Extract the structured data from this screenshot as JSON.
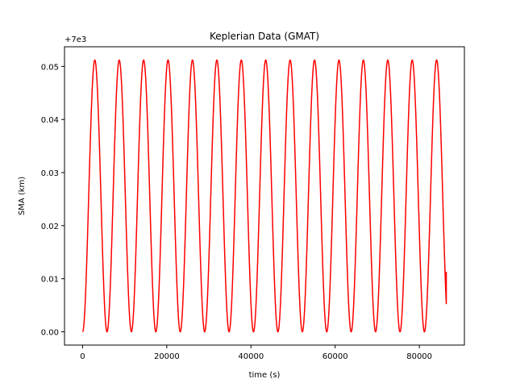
{
  "chart_data": {
    "type": "line",
    "title": "Keplerian Data (GMAT)",
    "xlabel": "time (s)",
    "ylabel": "SMA (km)",
    "y_offset_label": "+7e3",
    "xlim": [
      -4300,
      90700
    ],
    "ylim": [
      -0.0025,
      0.0537
    ],
    "x_ticks": [
      0,
      20000,
      40000,
      60000,
      80000
    ],
    "x_tick_labels": [
      "0",
      "20000",
      "40000",
      "60000",
      "80000"
    ],
    "y_ticks": [
      0.0,
      0.01,
      0.02,
      0.03,
      0.04,
      0.05
    ],
    "y_tick_labels": [
      "0.00",
      "0.01",
      "0.02",
      "0.03",
      "0.04",
      "0.05"
    ],
    "grid": false,
    "series": [
      {
        "color": "#ff0000",
        "x_start": 0,
        "x_end": 86400,
        "period": 5800,
        "y_min": 0.0,
        "y_max": 0.0512,
        "y_end": 0.0113
      }
    ]
  }
}
